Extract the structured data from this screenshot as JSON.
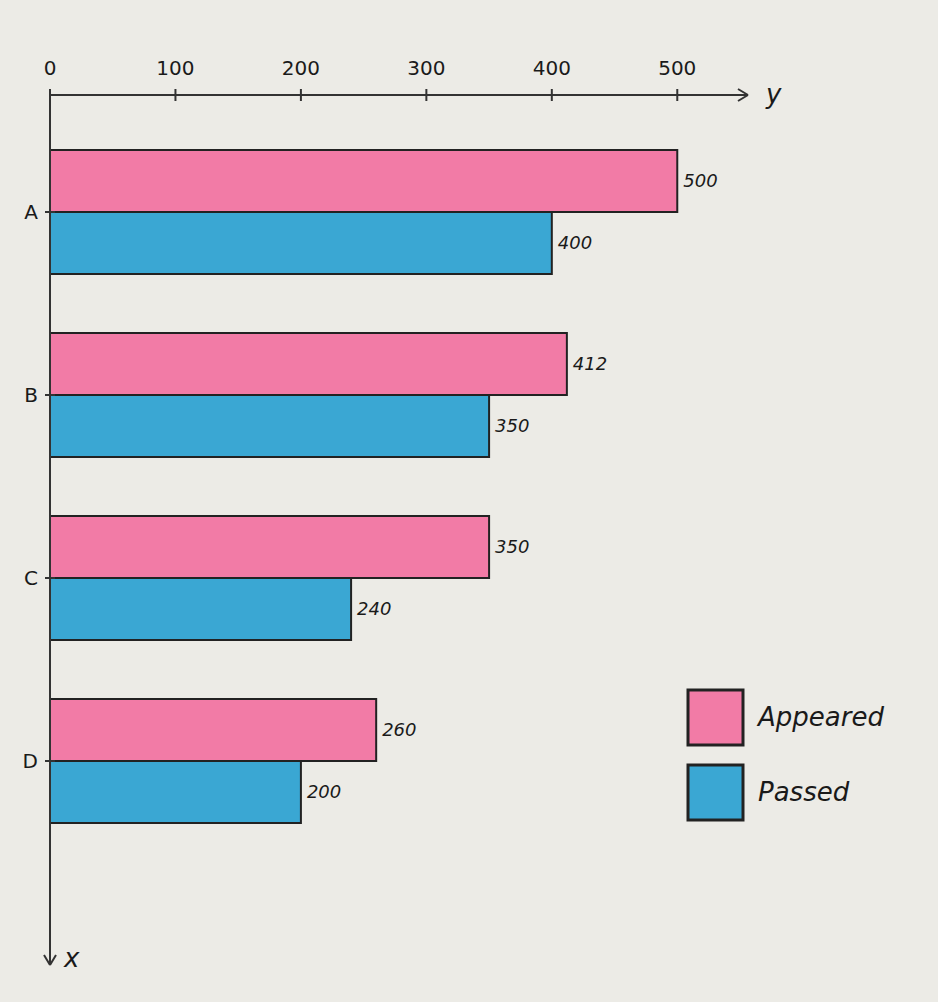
{
  "chart_data": {
    "type": "bar",
    "orientation": "horizontal",
    "categories": [
      "A",
      "B",
      "C",
      "D"
    ],
    "series": [
      {
        "name": "Appeared",
        "color": "#f27ba6",
        "values": [
          500,
          412,
          350,
          260
        ]
      },
      {
        "name": "Passed",
        "color": "#3aa7d3",
        "values": [
          400,
          350,
          240,
          200
        ]
      }
    ],
    "x_label": "x",
    "y_label": "y",
    "ylim": [
      0,
      550
    ],
    "yticks": [
      0,
      100,
      200,
      300,
      400,
      500
    ],
    "data_labels": true,
    "legend": "right",
    "grid": false
  }
}
